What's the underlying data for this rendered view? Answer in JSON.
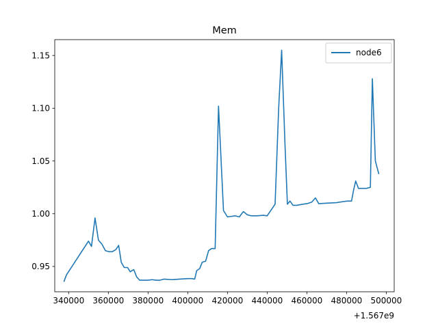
{
  "chart_data": {
    "type": "line",
    "title": "Mem",
    "xlabel": "",
    "ylabel": "",
    "x_offset_label": "+1.567e9",
    "xlim": [
      333000,
      504000
    ],
    "ylim": [
      0.926,
      1.165
    ],
    "xticks": [
      340000,
      360000,
      380000,
      400000,
      420000,
      440000,
      460000,
      480000,
      500000
    ],
    "xtick_labels": [
      "340000",
      "360000",
      "380000",
      "400000",
      "420000",
      "440000",
      "460000",
      "480000",
      "500000"
    ],
    "yticks": [
      0.95,
      1.0,
      1.05,
      1.1,
      1.15
    ],
    "ytick_labels": [
      "0.95",
      "1.00",
      "1.05",
      "1.10",
      "1.15"
    ],
    "grid": false,
    "legend_position": "top-right",
    "series": [
      {
        "name": "node6",
        "color": "#1f77b4",
        "points": [
          [
            337700,
            0.936
          ],
          [
            338900,
            0.942
          ],
          [
            350000,
            0.974
          ],
          [
            351500,
            0.969
          ],
          [
            353300,
            0.996
          ],
          [
            355000,
            0.975
          ],
          [
            356800,
            0.971
          ],
          [
            358500,
            0.965
          ],
          [
            360300,
            0.964
          ],
          [
            362000,
            0.964
          ],
          [
            363800,
            0.966
          ],
          [
            365200,
            0.97
          ],
          [
            366500,
            0.954
          ],
          [
            368000,
            0.949
          ],
          [
            369700,
            0.949
          ],
          [
            371000,
            0.945
          ],
          [
            372800,
            0.947
          ],
          [
            374300,
            0.94
          ],
          [
            375800,
            0.937
          ],
          [
            380000,
            0.937
          ],
          [
            382000,
            0.9375
          ],
          [
            384000,
            0.937
          ],
          [
            386000,
            0.937
          ],
          [
            388000,
            0.938
          ],
          [
            392000,
            0.9375
          ],
          [
            396000,
            0.938
          ],
          [
            400000,
            0.9385
          ],
          [
            402000,
            0.9385
          ],
          [
            403500,
            0.938
          ],
          [
            404500,
            0.946
          ],
          [
            406000,
            0.948
          ],
          [
            407300,
            0.954
          ],
          [
            409000,
            0.955
          ],
          [
            410500,
            0.965
          ],
          [
            412000,
            0.967
          ],
          [
            413800,
            0.967
          ],
          [
            415500,
            1.102
          ],
          [
            418000,
            1.003
          ],
          [
            420000,
            0.997
          ],
          [
            422000,
            0.9975
          ],
          [
            424000,
            0.998
          ],
          [
            426000,
            0.997
          ],
          [
            428000,
            1.002
          ],
          [
            430000,
            0.999
          ],
          [
            432000,
            0.998
          ],
          [
            435000,
            0.998
          ],
          [
            438000,
            0.9985
          ],
          [
            440000,
            0.998
          ],
          [
            444000,
            1.009
          ],
          [
            445800,
            1.1
          ],
          [
            447300,
            1.155
          ],
          [
            449000,
            1.065
          ],
          [
            450200,
            1.009
          ],
          [
            451500,
            1.012
          ],
          [
            453000,
            1.008
          ],
          [
            455000,
            1.008
          ],
          [
            458000,
            1.009
          ],
          [
            460000,
            1.0095
          ],
          [
            462500,
            1.011
          ],
          [
            464300,
            1.015
          ],
          [
            466000,
            1.0095
          ],
          [
            470000,
            1.01
          ],
          [
            475000,
            1.0105
          ],
          [
            476500,
            1.011
          ],
          [
            478500,
            1.0115
          ],
          [
            480500,
            1.012
          ],
          [
            482500,
            1.012
          ],
          [
            483500,
            1.022
          ],
          [
            484600,
            1.031
          ],
          [
            486000,
            1.024
          ],
          [
            488000,
            1.024
          ],
          [
            490000,
            1.024
          ],
          [
            492000,
            1.025
          ],
          [
            493000,
            1.128
          ],
          [
            494500,
            1.05
          ],
          [
            496200,
            1.038
          ]
        ]
      }
    ]
  }
}
